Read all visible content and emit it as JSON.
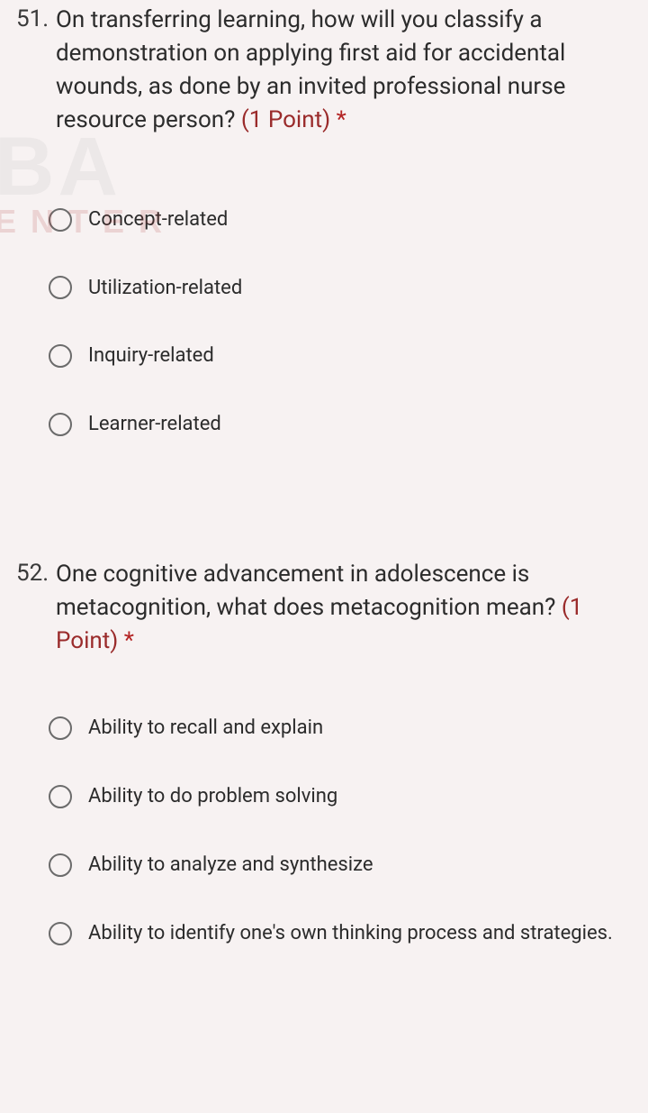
{
  "watermark": {
    "line1": "BA",
    "line2": "ENTER"
  },
  "questions": [
    {
      "number": "51.",
      "text": "On transferring learning, how will you classify a demonstration on applying first aid for accidental wounds, as done by an invited professional nurse resource person?",
      "points": "(1 Point)",
      "required": "*",
      "options": [
        "Concept-related",
        "Utilization-related",
        "Inquiry-related",
        "Learner-related"
      ]
    },
    {
      "number": "52.",
      "text": "One cognitive advancement in adolescence is metacognition, what does metacognition mean?",
      "points": "(1 Point)",
      "required": "*",
      "options": [
        "Ability to recall and explain",
        "Ability to do problem solving",
        "Ability to analyze and synthesize",
        "Ability to identify one's own thinking process and strategies."
      ]
    }
  ],
  "colors": {
    "background": "#f7f2f2",
    "text": "#2b2b2b",
    "points": "#9a2b2b",
    "required": "#b42525",
    "radio_border": "#6b6b6b"
  }
}
